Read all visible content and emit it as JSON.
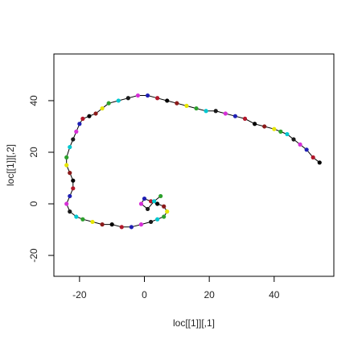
{
  "chart_data": {
    "type": "scatter",
    "x_label": "loc[[1]][,1]",
    "y_label": "loc[[1]][,2]",
    "x": [
      54,
      52,
      50,
      48,
      46,
      44,
      42,
      40,
      37,
      34,
      31,
      28,
      25,
      22,
      19,
      16,
      13,
      10,
      7,
      4,
      1,
      -2,
      -5,
      -8,
      -11,
      -13,
      -15,
      -17,
      -19,
      -20,
      -21,
      -22,
      -23,
      -24,
      -24,
      -23,
      -22,
      -22,
      -23,
      -24,
      -23,
      -21,
      -19,
      -16,
      -13,
      -10,
      -7,
      -4,
      -1,
      2,
      4,
      6,
      7,
      6,
      4,
      2,
      0,
      -1,
      1,
      3,
      5
    ],
    "series": [
      {
        "color": "#000000",
        "values": [
          16,
          18,
          21,
          23,
          25,
          27,
          28,
          29,
          30,
          31,
          33,
          34,
          35,
          36,
          36,
          37,
          38,
          39,
          40,
          41,
          42,
          42,
          41,
          40,
          39,
          37,
          35,
          34,
          33,
          31,
          28,
          25,
          22,
          18,
          15,
          12,
          9,
          6,
          3,
          0,
          -3,
          -5,
          -6,
          -7,
          -8,
          -8,
          -9,
          -9,
          -8,
          -7,
          -6,
          -5,
          -3,
          -1,
          0,
          1,
          2,
          0,
          -2,
          1,
          3
        ]
      }
    ],
    "point_colors": [
      "#000000",
      "#b2182b",
      "#1f1fb4",
      "#d62fd6",
      "#1a1a1a",
      "#00c8d0",
      "#2ca02c",
      "#e6e600",
      "#8b1a1a"
    ],
    "xlim": [
      -27.9,
      58.4
    ],
    "ylim": [
      -28.1,
      58.1
    ],
    "xticks": [
      -20,
      0,
      20,
      40
    ],
    "yticks": [
      -20,
      0,
      20,
      40
    ]
  }
}
